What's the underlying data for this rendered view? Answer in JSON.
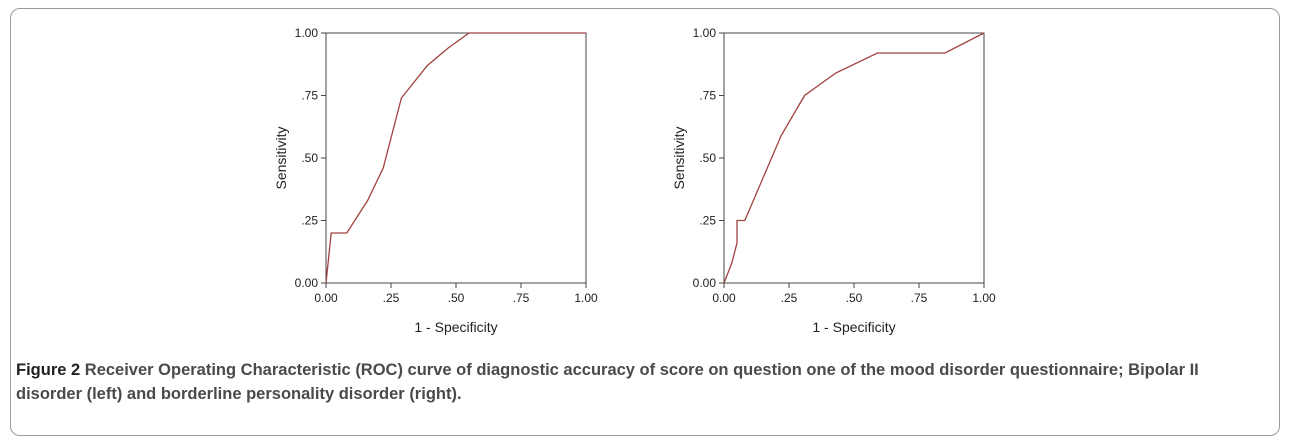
{
  "caption": {
    "label": "Figure 2",
    "text": "Receiver Operating Characteristic (ROC) curve of diagnostic accuracy of score on question one of the mood disorder questionnaire; Bipolar II disorder (left) and borderline personality disorder (right)."
  },
  "chart_data": [
    {
      "type": "line",
      "xlabel": "1 - Specificity",
      "ylabel": "Sensitivity",
      "xlim": [
        0,
        1
      ],
      "ylim": [
        0,
        1
      ],
      "xticks": [
        "0.00",
        ".25",
        ".50",
        ".75",
        "1.00"
      ],
      "yticks": [
        "0.00",
        ".25",
        ".50",
        ".75",
        "1.00"
      ],
      "grid": false,
      "line_color": "#a0423f",
      "series": [
        {
          "x": [
            0.0,
            0.02,
            0.03,
            0.08,
            0.16,
            0.22,
            0.29,
            0.39,
            0.47,
            0.55,
            1.0
          ],
          "y": [
            0.0,
            0.2,
            0.2,
            0.2,
            0.33,
            0.46,
            0.74,
            0.87,
            0.94,
            1.0,
            1.0
          ]
        }
      ]
    },
    {
      "type": "line",
      "xlabel": "1 - Specificity",
      "ylabel": "Sensitivity",
      "xlim": [
        0,
        1
      ],
      "ylim": [
        0,
        1
      ],
      "xticks": [
        "0.00",
        ".25",
        ".50",
        ".75",
        "1.00"
      ],
      "yticks": [
        "0.00",
        ".25",
        ".50",
        ".75",
        "1.00"
      ],
      "grid": false,
      "line_color": "#a0423f",
      "series": [
        {
          "x": [
            0.0,
            0.03,
            0.05,
            0.05,
            0.08,
            0.15,
            0.22,
            0.31,
            0.43,
            0.59,
            0.85,
            1.0
          ],
          "y": [
            0.0,
            0.08,
            0.16,
            0.25,
            0.25,
            0.42,
            0.59,
            0.75,
            0.84,
            0.92,
            0.92,
            1.0
          ]
        }
      ]
    }
  ]
}
